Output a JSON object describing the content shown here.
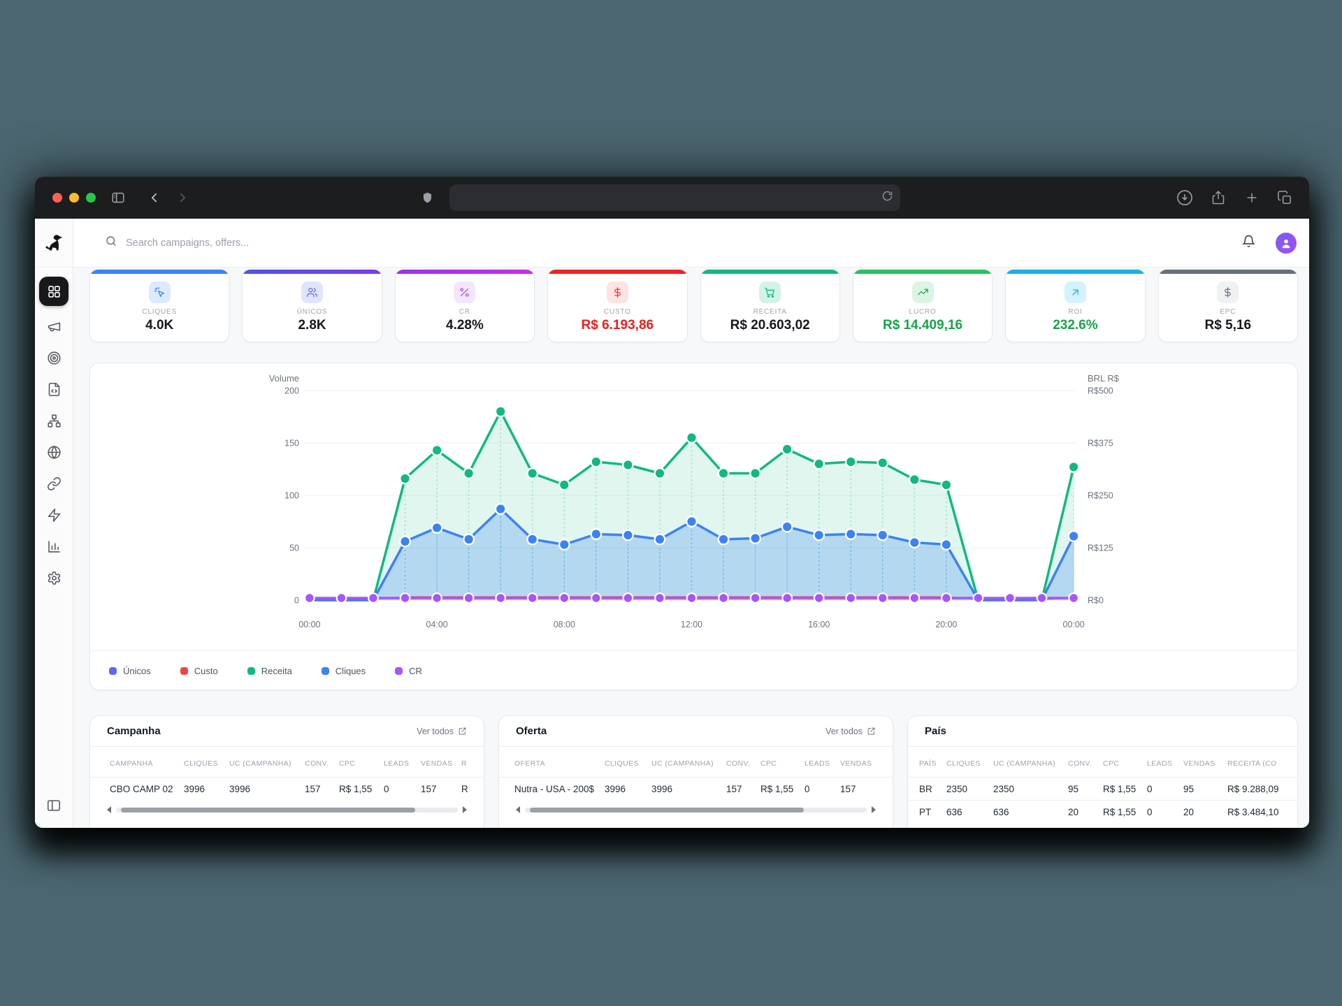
{
  "browser": {
    "traffic_lights": {
      "close": "#ff5f57",
      "minimize": "#febc2e",
      "zoom": "#28c840"
    },
    "url_value": ""
  },
  "app": {
    "search": {
      "placeholder": "Search campaigns, offers..."
    },
    "sidebar": {
      "items": [
        {
          "id": "dashboard",
          "icon": "grid",
          "active": true
        },
        {
          "id": "campaigns",
          "icon": "megaphone",
          "active": false
        },
        {
          "id": "offers",
          "icon": "target",
          "active": false
        },
        {
          "id": "landers",
          "icon": "file-code",
          "active": false
        },
        {
          "id": "funnels",
          "icon": "network",
          "active": false
        },
        {
          "id": "domains",
          "icon": "globe",
          "active": false
        },
        {
          "id": "links",
          "icon": "link",
          "active": false
        },
        {
          "id": "automations",
          "icon": "zap",
          "active": false
        },
        {
          "id": "reports",
          "icon": "bar-chart",
          "active": false
        },
        {
          "id": "settings",
          "icon": "settings",
          "active": false
        }
      ]
    },
    "kpis": [
      {
        "label": "CLIQUES",
        "value": "4.0K",
        "icon": "cursor-click",
        "accent": "#3b82f6",
        "accent2": "#3b82f6",
        "icon_bg": "#dbeafe",
        "icon_color": "#3b82f6",
        "value_color": "#16181d"
      },
      {
        "label": "ÚNICOS",
        "value": "2.8K",
        "icon": "users",
        "accent": "#4f55e4",
        "accent2": "#7c3aed",
        "icon_bg": "#e0e4fd",
        "icon_color": "#6366f1",
        "value_color": "#16181d"
      },
      {
        "label": "CR",
        "value": "4.28%",
        "icon": "percent",
        "accent": "#9b30f2",
        "accent2": "#c92df0",
        "icon_bg": "#f3e6fd",
        "icon_color": "#a855f7",
        "value_color": "#16181d"
      },
      {
        "label": "CUSTO",
        "value": "R$ 6.193,86",
        "icon": "dollar",
        "accent": "#ee2423",
        "accent2": "#ee2423",
        "icon_bg": "#fde3e1",
        "icon_color": "#e33b35",
        "value_color": "#e8201e"
      },
      {
        "label": "RECEITA",
        "value": "R$ 20.603,02",
        "icon": "cart",
        "accent": "#10b981",
        "accent2": "#10b981",
        "icon_bg": "#d3f3e6",
        "icon_color": "#10b981",
        "value_color": "#16181d"
      },
      {
        "label": "LUCRO",
        "value": "R$ 14.409,16",
        "icon": "trending-up",
        "accent": "#22c55e",
        "accent2": "#22c55e",
        "icon_bg": "#dcf5e3",
        "icon_color": "#1fa84e",
        "value_color": "#17a34a"
      },
      {
        "label": "ROI",
        "value": "232.6%",
        "icon": "arrow-up-right",
        "accent": "#18b1e8",
        "accent2": "#18b1e8",
        "icon_bg": "#d4f2fc",
        "icon_color": "#1caee5",
        "value_color": "#17a34a"
      },
      {
        "label": "EPC",
        "value": "R$ 5,16",
        "icon": "dollar",
        "accent": "#677078",
        "accent2": "#677078",
        "icon_bg": "#f0f1f3",
        "icon_color": "#6b7280",
        "value_color": "#16181d"
      }
    ],
    "tables": [
      {
        "title": "Campanha",
        "link": "Ver todos",
        "columns": [
          "CAMPANHA",
          "CLIQUES",
          "UC (CAMPANHA)",
          "CONV.",
          "CPC",
          "LEADS",
          "VENDAS",
          "R"
        ],
        "rows": [
          [
            "CBO CAMP 02",
            "3996",
            "3996",
            "157",
            "R$ 1,55",
            "0",
            "157",
            "R"
          ]
        ],
        "scrollbar": true
      },
      {
        "title": "Oferta",
        "link": "Ver todos",
        "columns": [
          "OFERTA",
          "CLIQUES",
          "UC (CAMPANHA)",
          "CONV.",
          "CPC",
          "LEADS",
          "VENDAS"
        ],
        "rows": [
          [
            "Nutra - USA - 200$",
            "3996",
            "3996",
            "157",
            "R$ 1,55",
            "0",
            "157"
          ]
        ],
        "scrollbar": true
      },
      {
        "title": "País",
        "link": "",
        "columns": [
          "PAÍS",
          "CLIQUES",
          "UC (CAMPANHA)",
          "CONV.",
          "CPC",
          "LEADS",
          "VENDAS",
          "RECEITA (CO"
        ],
        "rows": [
          [
            "BR",
            "2350",
            "2350",
            "95",
            "R$ 1,55",
            "0",
            "95",
            "R$ 9.288,09"
          ],
          [
            "PT",
            "636",
            "636",
            "20",
            "R$ 1,55",
            "0",
            "20",
            "R$ 3.484,10"
          ]
        ],
        "scrollbar": false
      }
    ]
  },
  "chart_data": {
    "type": "line",
    "title": "",
    "x": [
      "00:00",
      "01:00",
      "02:00",
      "03:00",
      "04:00",
      "05:00",
      "06:00",
      "07:00",
      "08:00",
      "09:00",
      "10:00",
      "11:00",
      "12:00",
      "13:00",
      "14:00",
      "15:00",
      "16:00",
      "17:00",
      "18:00",
      "19:00",
      "20:00",
      "21:00",
      "22:00",
      "23:00",
      "00:00"
    ],
    "x_tick_indices": [
      0,
      4,
      8,
      12,
      16,
      20,
      24
    ],
    "left_axis": {
      "label": "Volume",
      "min": 0,
      "max": 200,
      "ticks": [
        0,
        50,
        100,
        150,
        200
      ]
    },
    "right_axis": {
      "label": "BRL R$",
      "ticks": [
        "R$0",
        "R$125",
        "R$250",
        "R$375",
        "R$500"
      ]
    },
    "grid": true,
    "legend_position": "bottom",
    "series": [
      {
        "name": "Únicos",
        "color": "#6366f1",
        "dots": false,
        "values": [
          2,
          2,
          2,
          2,
          2,
          2,
          2,
          2,
          2,
          2,
          2,
          2,
          2,
          2,
          2,
          2,
          2,
          2,
          2,
          2,
          2,
          2,
          2,
          2,
          2
        ]
      },
      {
        "name": "Custo",
        "color": "#ef4444",
        "dots": false,
        "values": [
          1,
          1,
          1,
          3,
          3,
          3,
          3,
          3,
          3,
          3,
          3,
          3,
          3,
          3,
          3,
          3,
          3,
          3,
          3,
          3,
          3,
          1,
          1,
          1,
          2
        ]
      },
      {
        "name": "Receita",
        "color": "#10b981",
        "fill": "rgba(16,185,129,0.13)",
        "dots": true,
        "values": [
          0,
          0,
          0,
          116,
          143,
          121,
          180,
          121,
          110,
          132,
          129,
          121,
          155,
          121,
          121,
          144,
          130,
          132,
          131,
          115,
          110,
          0,
          0,
          0,
          127
        ]
      },
      {
        "name": "Cliques",
        "color": "#3b82f6",
        "fill": "rgba(59,130,246,0.26)",
        "dots": true,
        "values": [
          0,
          0,
          0,
          56,
          69,
          58,
          87,
          58,
          53,
          63,
          62,
          58,
          75,
          58,
          59,
          70,
          62,
          63,
          62,
          55,
          53,
          0,
          0,
          0,
          61
        ]
      },
      {
        "name": "CR",
        "color": "#a855f7",
        "dots": true,
        "values": [
          2,
          2,
          2,
          2,
          2,
          2,
          2,
          2,
          2,
          2,
          2,
          2,
          2,
          2,
          2,
          2,
          2,
          2,
          2,
          2,
          2,
          2,
          2,
          2,
          2
        ]
      }
    ]
  }
}
